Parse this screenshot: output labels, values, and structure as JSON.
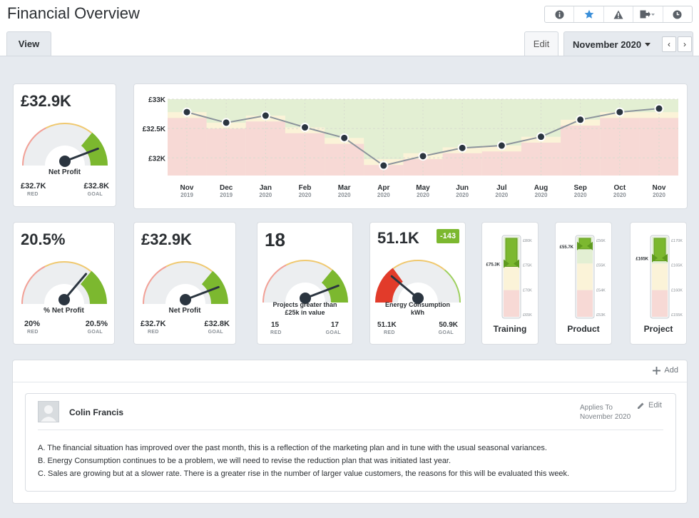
{
  "header": {
    "title": "Financial Overview",
    "toolbar_icons": [
      "info-icon",
      "star-icon",
      "warning-icon",
      "export-icon",
      "clock-icon"
    ],
    "view_tab": "View",
    "edit_label": "Edit",
    "period": "November 2020",
    "prev": "‹",
    "next": "›"
  },
  "kpi_net_profit_main": {
    "value": "£32.9K",
    "label": "Net Profit",
    "red": "£32.7K",
    "goal": "£32.8K",
    "red_sub": "RED",
    "goal_sub": "GOAL",
    "needle": 0.85
  },
  "kpi_pct_net_profit": {
    "value": "20.5%",
    "label": "% Net Profit",
    "red": "20%",
    "goal": "20.5%",
    "red_sub": "RED",
    "goal_sub": "GOAL",
    "needle": 0.7
  },
  "kpi_net_profit": {
    "value": "£32.9K",
    "label": "Net Profit",
    "red": "£32.7K",
    "goal": "£32.8K",
    "red_sub": "RED",
    "goal_sub": "GOAL",
    "needle": 0.85
  },
  "kpi_projects": {
    "value": "18",
    "label_line1": "Projects greater than",
    "label_line2": "£25k in value",
    "red": "15",
    "goal": "17",
    "red_sub": "RED",
    "goal_sub": "GOAL",
    "needle": 0.85
  },
  "kpi_energy": {
    "value": "51.1K",
    "badge": "-143",
    "label_line1": "Energy Consumption",
    "label_line2": "kWh",
    "red": "51.1K",
    "goal": "50.9K",
    "red_sub": "RED",
    "goal_sub": "GOAL",
    "needle": 0.25
  },
  "vbars": [
    {
      "title": "Training",
      "value_label": "£75.3K",
      "ticks": [
        "£80K",
        "£75K",
        "£70K",
        "£65K"
      ],
      "level": 0.68
    },
    {
      "title": "Product",
      "value_label": "£55.7K",
      "ticks": [
        "£56K",
        "£55K",
        "£54K",
        "£53K"
      ],
      "level": 0.9
    },
    {
      "title": "Project",
      "value_label": "£165K",
      "ticks": [
        "£170K",
        "£165K",
        "£160K",
        "£155K"
      ],
      "level": 0.75
    }
  ],
  "chart_data": {
    "type": "line",
    "x": [
      "Nov 2019",
      "Dec 2019",
      "Jan 2020",
      "Feb 2020",
      "Mar 2020",
      "Apr 2020",
      "May 2020",
      "Jun 2020",
      "Jul 2020",
      "Aug 2020",
      "Sep 2020",
      "Oct 2020",
      "Nov 2020"
    ],
    "x_months": [
      "Nov",
      "Dec",
      "Jan",
      "Feb",
      "Mar",
      "Apr",
      "May",
      "Jun",
      "Jul",
      "Aug",
      "Sep",
      "Oct",
      "Nov"
    ],
    "x_years": [
      "2019",
      "2019",
      "2020",
      "2020",
      "2020",
      "2020",
      "2020",
      "2020",
      "2020",
      "2020",
      "2020",
      "2020",
      "2020"
    ],
    "values": [
      32.78,
      32.6,
      32.72,
      32.52,
      32.34,
      31.87,
      32.03,
      32.17,
      32.21,
      32.36,
      32.65,
      32.78,
      32.84
    ],
    "red_band": [
      32.68,
      32.5,
      32.62,
      32.42,
      32.24,
      31.88,
      31.98,
      32.08,
      32.11,
      32.26,
      32.55,
      32.68,
      32.68
    ],
    "goal_band": [
      32.78,
      32.6,
      32.72,
      32.52,
      32.34,
      31.98,
      32.08,
      32.18,
      32.21,
      32.36,
      32.65,
      32.78,
      32.78
    ],
    "y_ticks": [
      "£33K",
      "£32.5K",
      "£32K"
    ],
    "y_tick_values": [
      33.0,
      32.5,
      32.0
    ],
    "ylim": [
      31.7,
      33.0
    ],
    "colors": {
      "line": "#8c949c",
      "point": "#2b3540",
      "good": "#e3efd3",
      "warn": "#fbf3d8",
      "bad": "#f7d9d5"
    }
  },
  "comments": {
    "add_label": "Add",
    "author": "Colin Francis",
    "applies_label": "Applies To",
    "applies_value": "November 2020",
    "edit_label": "Edit",
    "lines": [
      "A. The financial situation has improved over the past month, this is a reflection of the marketing plan and in tune with the usual seasonal variances.",
      "B. Energy Consumption continues to be a problem, we will need to revise the reduction plan that was initiated last year.",
      "C. Sales are growing but at a slower rate. There is a greater rise in the number of larger value customers, the reasons for this will be evaluated this week."
    ]
  }
}
